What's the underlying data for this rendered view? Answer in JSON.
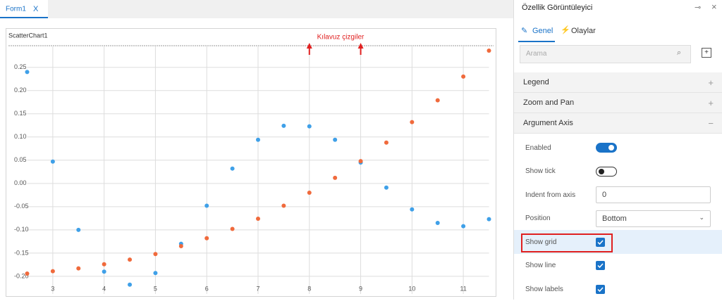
{
  "tab": {
    "title": "Form1",
    "close": "X"
  },
  "chart_data": {
    "type": "scatter",
    "title": "ScatterChart1",
    "annotation": {
      "text": "Kılavuz çizgiler",
      "x": [
        8,
        9
      ]
    },
    "x": [
      2.5,
      3,
      3.5,
      4,
      4.5,
      5,
      5.5,
      6,
      6.5,
      7,
      7.5,
      8,
      8.5,
      9,
      9.5,
      10,
      10.5,
      11,
      11.5
    ],
    "series": [
      {
        "color": "#3fa0e8",
        "values": [
          0.24,
          0.047,
          -0.1,
          -0.19,
          -0.218,
          -0.193,
          -0.13,
          -0.048,
          0.032,
          0.094,
          0.124,
          0.123,
          0.094,
          0.045,
          -0.009,
          -0.056,
          -0.085,
          -0.092,
          -0.077
        ]
      },
      {
        "color": "#f06a3c",
        "values": [
          -0.194,
          -0.189,
          -0.183,
          -0.174,
          -0.164,
          -0.152,
          -0.135,
          -0.118,
          -0.098,
          -0.076,
          -0.048,
          -0.02,
          0.012,
          0.048,
          0.088,
          0.132,
          0.179,
          0.23,
          0.286
        ]
      }
    ],
    "xlim": [
      2.5,
      11.5
    ],
    "xticks": [
      3,
      4,
      5,
      6,
      7,
      8,
      9,
      10,
      11
    ],
    "ylim": [
      -0.238,
      0.295
    ],
    "yticks": [
      {
        "value": -0.2,
        "label": "-0.20"
      },
      -0.15,
      {
        "value": -0.1,
        "label": "-0.10"
      },
      -0.05,
      {
        "value": 0,
        "label": "0.00"
      },
      0.05,
      {
        "value": 0.1,
        "label": "0.10"
      },
      0.15,
      {
        "value": 0.2,
        "label": "0.20"
      },
      0.25
    ],
    "grid": true
  },
  "panel": {
    "title": "Özellik Görüntüleyici",
    "tabs": [
      "Genel",
      "Olaylar"
    ],
    "search_placeholder": "Arama",
    "sections": [
      "Legend",
      "Zoom and Pan",
      "Argument Axis"
    ],
    "properties": [
      {
        "label": "Enabled",
        "toggle": true
      },
      {
        "label": "Show tick",
        "toggle": false
      },
      {
        "label": "Indent from axis",
        "input": "0"
      },
      {
        "label": "Position",
        "select": "Bottom"
      },
      {
        "label": "Show grid",
        "checkbox": true
      },
      {
        "label": "Show line",
        "checkbox": true
      },
      {
        "label": "Show labels",
        "checkbox": true
      }
    ]
  }
}
